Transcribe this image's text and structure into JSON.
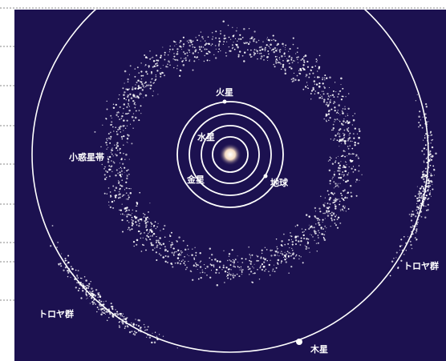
{
  "diagram": {
    "labels": {
      "mars": "火星",
      "mercury": "水星",
      "venus": "金星",
      "earth": "地球",
      "asteroid_belt": "小惑星帯",
      "trojans_left": "トロヤ群",
      "trojans_right": "トロヤ群",
      "jupiter": "木星"
    }
  }
}
